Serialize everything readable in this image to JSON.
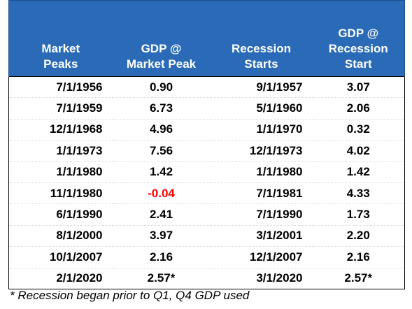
{
  "table": {
    "header": [
      [
        "Market",
        "Peaks"
      ],
      [
        "GDP @",
        "Market Peak"
      ],
      [
        "Recession",
        "Starts"
      ],
      [
        "GDP @",
        "Recession",
        "Start"
      ]
    ],
    "rows": [
      [
        "7/1/1956",
        "0.90",
        "9/1/1957",
        "3.07"
      ],
      [
        "7/1/1959",
        "6.73",
        "5/1/1960",
        "2.06"
      ],
      [
        "12/1/1968",
        "4.96",
        "1/1/1970",
        "0.32"
      ],
      [
        "1/1/1973",
        "7.56",
        "12/1/1973",
        "4.02"
      ],
      [
        "1/1/1980",
        "1.42",
        "1/1/1980",
        "1.42"
      ],
      [
        "11/1/1980",
        "-0.04",
        "7/1/1981",
        "4.33"
      ],
      [
        "6/1/1990",
        "2.41",
        "7/1/1990",
        "1.73"
      ],
      [
        "8/1/2000",
        "3.97",
        "3/1/2001",
        "2.20"
      ],
      [
        "10/1/2007",
        "2.16",
        "12/1/2007",
        "2.16"
      ],
      [
        "2/1/2020",
        "2.57*",
        "3/1/2020",
        "2.57*"
      ]
    ]
  },
  "footnote": "* Recession began prior to Q1, Q4 GDP used"
}
